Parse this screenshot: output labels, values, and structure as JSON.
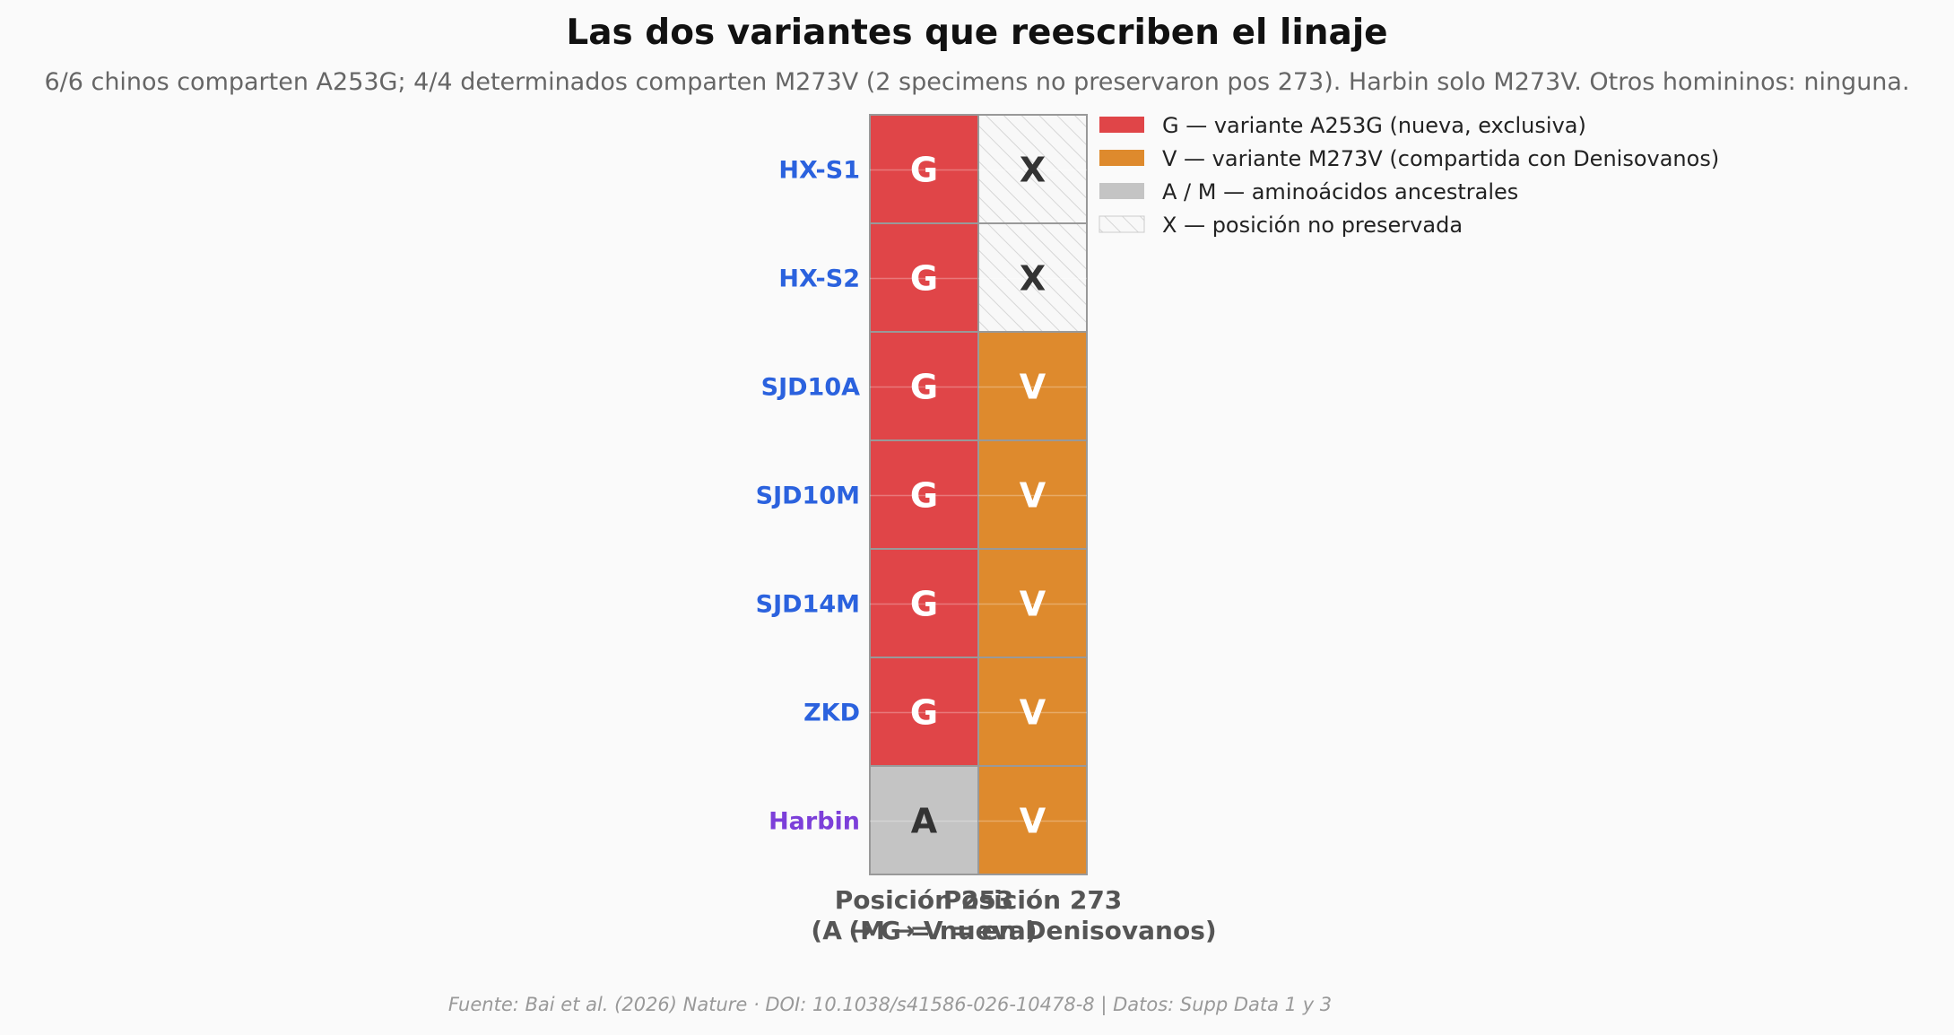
{
  "chart_data": {
    "type": "heatmap",
    "title": "Las dos variantes que reescriben el linaje",
    "subtitle": "6/6 chinos comparten A253G; 4/4 determinados comparten M273V (2 specimens no preservaron pos 273). Harbin solo M273V. Otros homininos: ninguna.",
    "columns": [
      {
        "line1": "Posición 253",
        "line2": "(A → G = nueva)"
      },
      {
        "line1": "Posición 273",
        "line2": "(M → V = en Denisovanos)"
      }
    ],
    "rows": [
      {
        "specimen": "HX-S1",
        "label_color": "#2b62de",
        "cells": [
          "G",
          "X"
        ]
      },
      {
        "specimen": "HX-S2",
        "label_color": "#2b62de",
        "cells": [
          "G",
          "X"
        ]
      },
      {
        "specimen": "SJD10A",
        "label_color": "#2b62de",
        "cells": [
          "G",
          "V"
        ]
      },
      {
        "specimen": "SJD10M",
        "label_color": "#2b62de",
        "cells": [
          "G",
          "V"
        ]
      },
      {
        "specimen": "SJD14M",
        "label_color": "#2b62de",
        "cells": [
          "G",
          "V"
        ]
      },
      {
        "specimen": "ZKD",
        "label_color": "#2b62de",
        "cells": [
          "G",
          "V"
        ]
      },
      {
        "specimen": "Harbin",
        "label_color": "#7c3fd9",
        "cells": [
          "A",
          "V"
        ]
      }
    ],
    "legend": {
      "placement": "top-right",
      "entries": [
        {
          "key": "G",
          "label": "G — variante A253G (nueva, exclusiva)",
          "color": "#e04548"
        },
        {
          "key": "V",
          "label": "V — variante M273V (compartida con Denisovanos)",
          "color": "#de8a2d"
        },
        {
          "key": "A",
          "label": "A / M — aminoácidos ancestrales",
          "color": "#c4c4c4"
        },
        {
          "key": "X",
          "label": "X — posición no preservada",
          "color": "hatched"
        }
      ]
    },
    "colors": {
      "G": "#e04548",
      "V": "#de8a2d",
      "A": "#c4c4c4",
      "M": "#c4c4c4",
      "X": "#f7f7f7"
    },
    "footer": "Fuente: Bai et al. (2026) Nature · DOI: 10.1038/s41586-026-10478-8 | Datos: Supp Data 1 y 3"
  }
}
